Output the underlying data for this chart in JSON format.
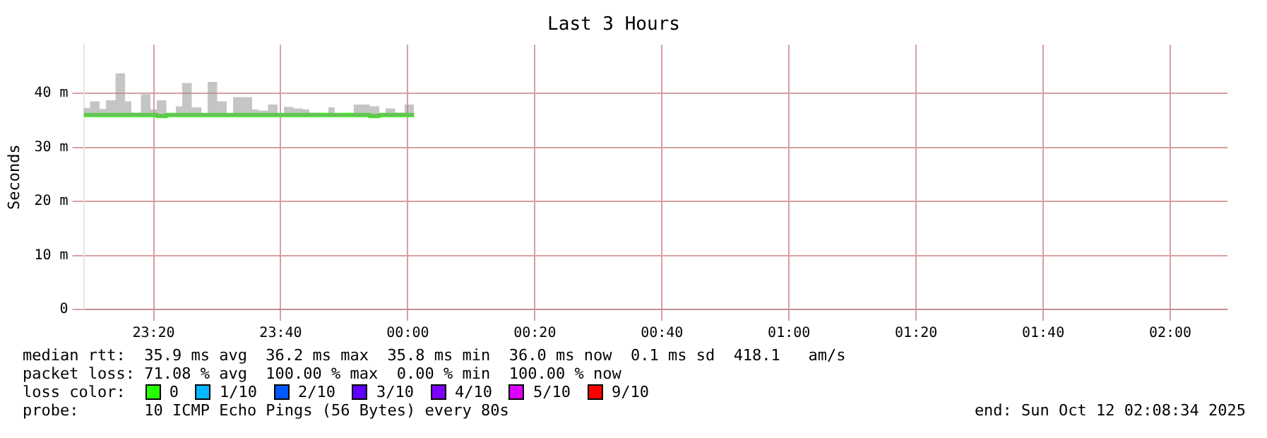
{
  "chart_data": {
    "type": "step",
    "title": "Last 3 Hours",
    "ylabel": "Seconds",
    "xlim": [
      "2025-10-11T23:09",
      "2025-10-12T02:09"
    ],
    "xticks": [
      {
        "value": "2025-10-11T23:20",
        "label": "23:20"
      },
      {
        "value": "2025-10-11T23:40",
        "label": "23:40"
      },
      {
        "value": "2025-10-12T00:00",
        "label": "00:00"
      },
      {
        "value": "2025-10-12T00:20",
        "label": "00:20"
      },
      {
        "value": "2025-10-12T00:40",
        "label": "00:40"
      },
      {
        "value": "2025-10-12T01:00",
        "label": "01:00"
      },
      {
        "value": "2025-10-12T01:20",
        "label": "01:20"
      },
      {
        "value": "2025-10-12T01:40",
        "label": "01:40"
      },
      {
        "value": "2025-10-12T02:00",
        "label": "02:00"
      }
    ],
    "ylim": [
      0,
      49
    ],
    "yticks": [
      0,
      {
        "value": 10,
        "label": "10 m"
      },
      {
        "value": 20,
        "label": "20 m"
      },
      {
        "value": 30,
        "label": "30 m"
      },
      {
        "value": 40,
        "label": "40 m"
      }
    ],
    "grid": true,
    "legend": "bottom",
    "legend_title": "loss color:",
    "series": [
      {
        "name": "0",
        "color": "#26ff00",
        "x": [
          "2025-10-11T23:09",
          "2025-10-11T23:11",
          "2025-10-11T23:12",
          "2025-10-11T23:13",
          "2025-10-11T23:15",
          "2025-10-11T23:16",
          "2025-10-11T23:17",
          "2025-10-11T23:19",
          "2025-10-11T23:20",
          "2025-10-11T23:21",
          "2025-10-11T23:23",
          "2025-10-11T23:24",
          "2025-10-11T23:25",
          "2025-10-11T23:27",
          "2025-10-11T23:28",
          "2025-10-11T23:29",
          "2025-10-11T23:31",
          "2025-10-11T23:32",
          "2025-10-11T23:33",
          "2025-10-11T23:35",
          "2025-10-11T23:36",
          "2025-10-11T23:37",
          "2025-10-11T23:39",
          "2025-10-11T23:40",
          "2025-10-11T23:41",
          "2025-10-11T23:43",
          "2025-10-11T23:44",
          "2025-10-11T23:45",
          "2025-10-11T23:47",
          "2025-10-11T23:48",
          "2025-10-11T23:49",
          "2025-10-11T23:51",
          "2025-10-11T23:52",
          "2025-10-11T23:53",
          "2025-10-11T23:55",
          "2025-10-11T23:56",
          "2025-10-11T23:57",
          "2025-10-11T23:59",
          "2025-10-12T00:00",
          "2025-10-12T00:01"
        ],
        "values": [
          36,
          36,
          36,
          36,
          36,
          36,
          36,
          36,
          36,
          35.8,
          36,
          36,
          36,
          36,
          36,
          36,
          36,
          36,
          36,
          36,
          36,
          36,
          36,
          36,
          36,
          36,
          36,
          36,
          36,
          36,
          36,
          36,
          36,
          36,
          35.8,
          36,
          36,
          36,
          36,
          36
        ],
        "lower": [
          35.7,
          35.7,
          35.7,
          35.7,
          35.7,
          35.7,
          35.7,
          35.7,
          35.7,
          35.5,
          35.7,
          35.7,
          35.7,
          35.7,
          35.7,
          35.7,
          35.7,
          35.7,
          35.7,
          35.7,
          35.7,
          35.7,
          35.7,
          35.7,
          35.7,
          35.7,
          35.7,
          35.7,
          35.7,
          35.7,
          35.7,
          35.7,
          35.7,
          35.7,
          35.5,
          35.7,
          35.7,
          35.7,
          35.7,
          35.7
        ],
        "upper": [
          37.3,
          38.5,
          37.1,
          38.7,
          43.7,
          38.5,
          36.4,
          39.8,
          37,
          38.7,
          36.3,
          37.6,
          41.9,
          37.4,
          36.3,
          42.1,
          38.5,
          36.3,
          39.3,
          39.3,
          37,
          36.8,
          37.9,
          36.3,
          37.5,
          37.2,
          37,
          36.4,
          36.2,
          37.4,
          36.3,
          36.2,
          37.9,
          37.9,
          37.6,
          36.3,
          37.2,
          36.4,
          37.9,
          37.9
        ]
      },
      {
        "name": "1/10",
        "color": "#00b8ff"
      },
      {
        "name": "2/10",
        "color": "#0059ff"
      },
      {
        "name": "3/10",
        "color": "#5e00ff"
      },
      {
        "name": "4/10",
        "color": "#7e00ff"
      },
      {
        "name": "5/10",
        "color": "#dd00ff"
      },
      {
        "name": "9/10",
        "color": "#ff0000"
      }
    ],
    "annotations": [
      "median rtt:  35.9 ms avg  36.2 ms max  35.8 ms min  36.0 ms now  0.1 ms sd  418.1   am/s",
      "packet loss: 71.08 % avg  100.00 % max  0.00 % min  100.00 % now",
      "probe:       10 ICMP Echo Pings (56 Bytes) every 80s",
      "end: Sun Oct 12 02:08:34 2025"
    ]
  }
}
